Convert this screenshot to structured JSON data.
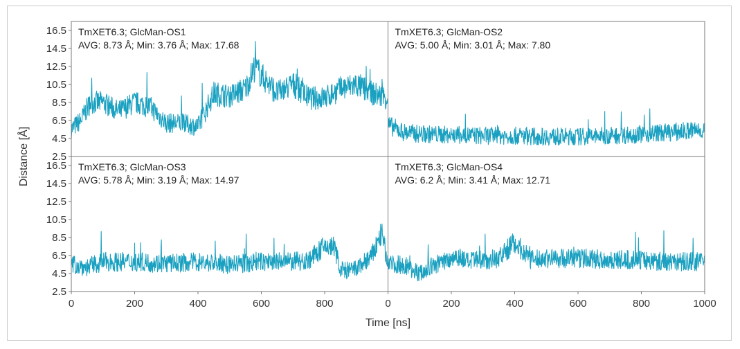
{
  "chart_data": {
    "type": "line",
    "xlabel": "Time [ns]",
    "ylabel": "Distance [Å]",
    "series_color": "#1aa0c0",
    "x_ticks": [
      "0",
      "200",
      "400",
      "600",
      "800",
      "0",
      "200",
      "400",
      "600",
      "800",
      "1000"
    ],
    "y_ticks": [
      "2.5",
      "4.5",
      "6.5",
      "8.5",
      "10.5",
      "12.5",
      "14.5",
      "16.5"
    ],
    "panels": [
      {
        "title": "TmXET6.3; GlcMan-OS1",
        "stats": "AVG: 8.73 Å; Min: 3.76 Å; Max: 17.68",
        "xlim": [
          0,
          1000
        ],
        "ylim": [
          2.5,
          17.5
        ],
        "x": [
          0,
          30,
          60,
          100,
          150,
          200,
          250,
          300,
          350,
          400,
          450,
          500,
          550,
          580,
          600,
          650,
          700,
          750,
          800,
          850,
          900,
          950,
          1000
        ],
        "y": [
          5.5,
          6.5,
          8.5,
          8.5,
          7.5,
          8.5,
          8.0,
          6.2,
          6.2,
          5.8,
          9.5,
          9.2,
          10.0,
          12.5,
          11.5,
          9.5,
          10.5,
          9.0,
          9.0,
          10.0,
          10.5,
          9.5,
          9.0
        ]
      },
      {
        "title": "TmXET6.3; GlcMan-OS2",
        "stats": "AVG: 5.00 Å; Min: 3.01 Å; Max: 7.80",
        "xlim": [
          0,
          1000
        ],
        "ylim": [
          2.5,
          17.5
        ],
        "x": [
          0,
          50,
          100,
          200,
          300,
          400,
          500,
          600,
          700,
          800,
          900,
          1000
        ],
        "y": [
          6.0,
          5.2,
          5.0,
          4.9,
          4.8,
          4.8,
          4.7,
          4.7,
          4.8,
          5.0,
          5.2,
          5.5
        ]
      },
      {
        "title": "TmXET6.3; GlcMan-OS3",
        "stats": "AVG: 5.78 Å; Min: 3.19 Å; Max: 14.97",
        "xlim": [
          0,
          1000
        ],
        "ylim": [
          2.5,
          17.5
        ],
        "x": [
          0,
          50,
          100,
          200,
          300,
          400,
          500,
          600,
          700,
          750,
          800,
          830,
          850,
          870,
          900,
          950,
          980,
          1000
        ],
        "y": [
          5.5,
          5.2,
          5.8,
          5.8,
          5.6,
          5.8,
          5.5,
          5.8,
          5.8,
          6.0,
          7.5,
          7.5,
          5.0,
          4.8,
          5.0,
          6.5,
          9.0,
          5.5
        ]
      },
      {
        "title": "TmXET6.3; GlcMan-OS4",
        "stats": "AVG: 6.2 Å; Min: 3.41 Å; Max: 12.71",
        "xlim": [
          0,
          1000
        ],
        "ylim": [
          2.5,
          17.5
        ],
        "x": [
          0,
          50,
          100,
          150,
          220,
          250,
          300,
          350,
          400,
          450,
          500,
          600,
          700,
          800,
          900,
          1000
        ],
        "y": [
          5.5,
          5.5,
          4.5,
          5.5,
          6.5,
          5.8,
          6.0,
          6.2,
          8.0,
          6.0,
          6.2,
          6.2,
          6.0,
          6.0,
          5.8,
          5.8
        ]
      }
    ],
    "grid": false,
    "legend": "none"
  }
}
